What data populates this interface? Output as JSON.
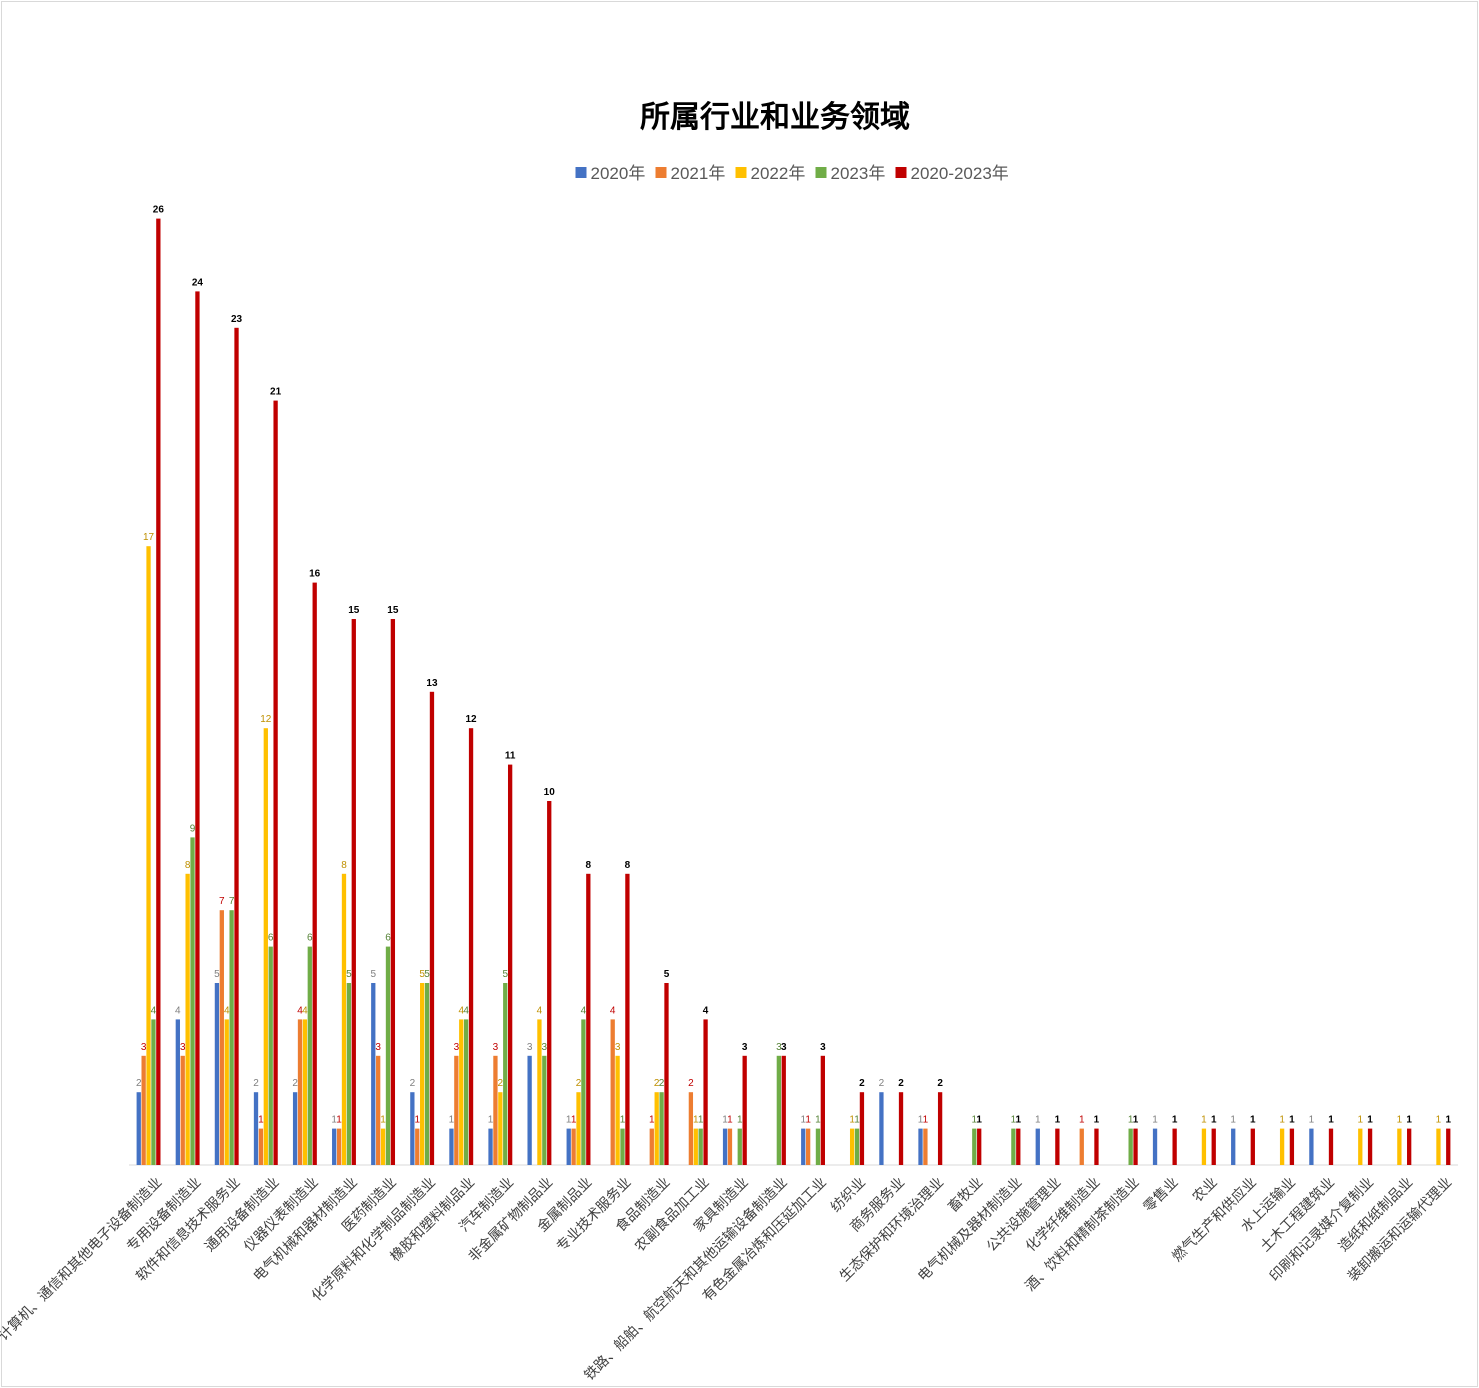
{
  "chart_data": {
    "type": "bar",
    "title": "所属行业和业务领域",
    "xlabel": "",
    "ylabel": "",
    "ylim": [
      0,
      26
    ],
    "grid": false,
    "legend_position": "top",
    "categories": [
      "计算机、通信和其他电子设备制造业",
      "专用设备制造业",
      "软件和信息技术服务业",
      "通用设备制造业",
      "仪器仪表制造业",
      "电气机械和器材制造业",
      "医药制造业",
      "化学原料和化学制品制造业",
      "橡胶和塑料制品业",
      "汽车制造业",
      "非金属矿物制品业",
      "金属制品业",
      "专业技术服务业",
      "食品制造业",
      "农副食品加工业",
      "家具制造业",
      "铁路、船舶、航空航天和其他运输设备制造业",
      "有色金属冶炼和压延加工业",
      "纺织业",
      "商务服务业",
      "生态保护和环境治理业",
      "畜牧业",
      "电气机械及器材制造业",
      "公共设施管理业",
      "化学纤维制造业",
      "酒、饮料和精制茶制造业",
      "零售业",
      "农业",
      "燃气生产和供应业",
      "水上运输业",
      "土木工程建筑业",
      "印刷和记录媒介复制业",
      "造纸和纸制品业",
      "装卸搬运和运输代理业"
    ],
    "series": [
      {
        "name": "2020年",
        "color": "#4472C4",
        "values": [
          2,
          4,
          5,
          2,
          2,
          1,
          5,
          2,
          1,
          1,
          3,
          1,
          0,
          0,
          0,
          1,
          0,
          1,
          0,
          2,
          1,
          0,
          0,
          1,
          0,
          0,
          1,
          0,
          1,
          0,
          1,
          0,
          0,
          0
        ]
      },
      {
        "name": "2021年",
        "color": "#ED7D31",
        "values": [
          3,
          3,
          7,
          1,
          4,
          1,
          3,
          1,
          3,
          3,
          0,
          1,
          4,
          1,
          2,
          1,
          0,
          1,
          0,
          0,
          1,
          0,
          0,
          0,
          1,
          0,
          0,
          0,
          0,
          0,
          0,
          0,
          0,
          0
        ]
      },
      {
        "name": "2022年",
        "color": "#FFC000",
        "values": [
          17,
          8,
          4,
          12,
          4,
          8,
          1,
          5,
          4,
          2,
          4,
          2,
          3,
          2,
          1,
          0,
          0,
          0,
          1,
          0,
          0,
          0,
          0,
          0,
          0,
          0,
          0,
          1,
          0,
          1,
          0,
          1,
          1,
          1
        ]
      },
      {
        "name": "2023年",
        "color": "#70AD47",
        "values": [
          4,
          9,
          7,
          6,
          6,
          5,
          6,
          5,
          4,
          5,
          3,
          4,
          1,
          2,
          1,
          1,
          3,
          1,
          1,
          0,
          0,
          1,
          1,
          0,
          0,
          1,
          0,
          0,
          0,
          0,
          0,
          0,
          0,
          0
        ]
      },
      {
        "name": "2020-2023年",
        "color": "#C00000",
        "values": [
          26,
          24,
          23,
          21,
          16,
          15,
          15,
          13,
          12,
          11,
          10,
          8,
          8,
          5,
          4,
          3,
          3,
          3,
          2,
          2,
          2,
          1,
          1,
          1,
          1,
          1,
          1,
          1,
          1,
          1,
          1,
          1,
          1,
          1
        ]
      }
    ],
    "label_colors": [
      "#7F7F7F",
      "#C00000",
      "#BF9000",
      "#548235",
      "#000000"
    ]
  }
}
